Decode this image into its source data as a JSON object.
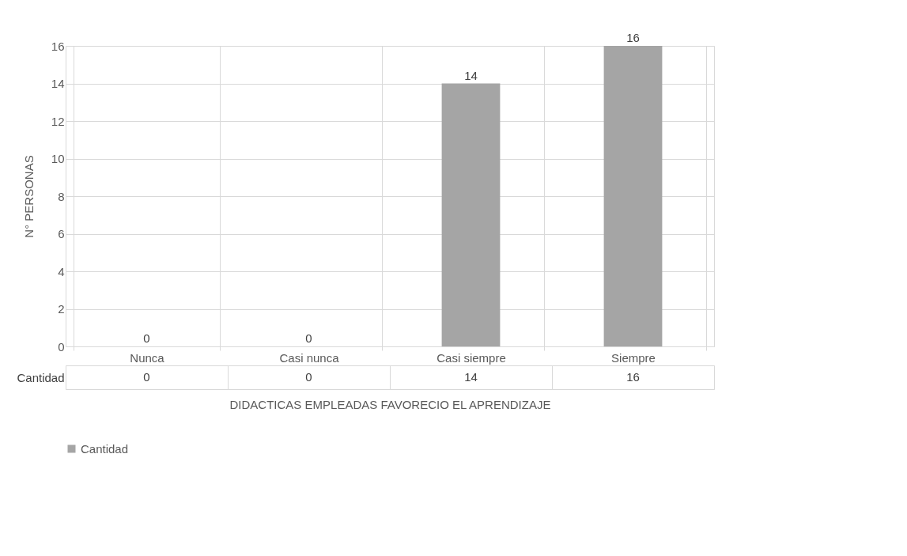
{
  "chart_data": {
    "type": "bar",
    "xlabel": "DIDACTICAS EMPLEADAS FAVORECIO EL APRENDIZAJE",
    "ylabel": "N° PERSONAS",
    "categories": [
      "Nunca",
      "Casi nunca",
      "Casi siempre",
      "Siempre"
    ],
    "series": [
      {
        "name": "Cantidad",
        "color": "#a5a5a5",
        "values": [
          0,
          0,
          14,
          16
        ],
        "value_labels": [
          "0",
          "0",
          "14",
          "16"
        ]
      }
    ],
    "annotations": [
      "0",
      "0",
      "14",
      "16"
    ],
    "ylim": [
      0,
      16
    ],
    "yticks": [
      0,
      2,
      4,
      6,
      8,
      10,
      12,
      14,
      16
    ],
    "grid": true,
    "legend": "bottom",
    "data_labels": true
  }
}
